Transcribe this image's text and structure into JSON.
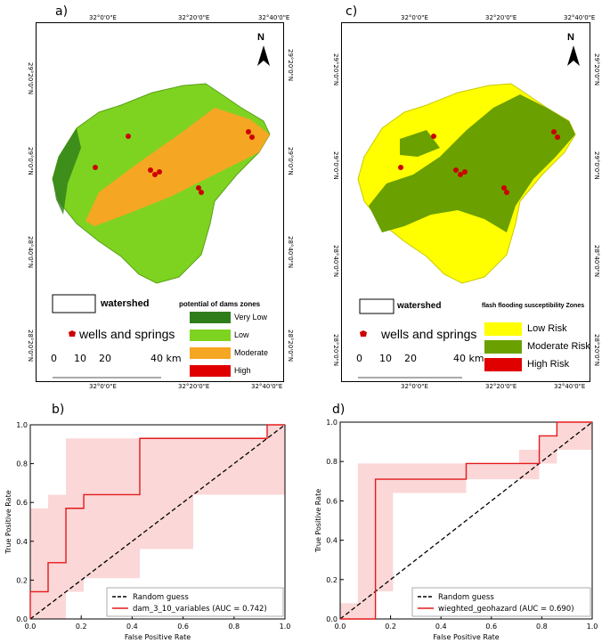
{
  "panels": {
    "a": "a)",
    "b": "b)",
    "c": "c)",
    "d": "d)"
  },
  "map_a": {
    "top_ticks": [
      "32°0'0\"E",
      "32°20'0\"E",
      "32°40'0\"E"
    ],
    "bottom_ticks": [
      "32°0'0\"E",
      "32°20'0\"E",
      "32°40'0\"E"
    ],
    "left_ticks": [
      "29°20'0\"N",
      "29°0'0\"N",
      "28°40'0\"N",
      "28°20'0\"N"
    ],
    "right_ticks": [
      "29°20'0\"N",
      "29°0'0\"N",
      "28°40'0\"N",
      "28°20'0\"N"
    ],
    "north": "N",
    "legend_watershed": "watershed",
    "legend_wells": "wells and springs",
    "legend_title": "potential of dams zones",
    "classes": [
      {
        "label": "Very Low",
        "color": "#2e7d1a"
      },
      {
        "label": "Low",
        "color": "#7ed321"
      },
      {
        "label": "Moderate",
        "color": "#f5a623"
      },
      {
        "label": "High",
        "color": "#e00000"
      }
    ],
    "scale": [
      "0",
      "10",
      "20",
      "40 km"
    ]
  },
  "map_c": {
    "top_ticks": [
      "32°0'0\"E",
      "32°20'0\"E",
      "32°40'0\"E"
    ],
    "bottom_ticks": [
      "32°0'0\"E",
      "32°20'0\"E",
      "32°40'0\"E"
    ],
    "left_ticks": [
      "29°20'0\"N",
      "29°0'0\"N",
      "28°40'0\"N",
      "28°20'0\"N"
    ],
    "right_ticks": [
      "29°20'0\"N",
      "29°0'0\"N",
      "28°40'0\"N",
      "28°20'0\"N"
    ],
    "north": "N",
    "legend_watershed": "watershed",
    "legend_wells": "wells and springs",
    "legend_title": "flash flooding susceptibility  Zones",
    "classes": [
      {
        "label": "Low Risk",
        "color": "#ffff00"
      },
      {
        "label": "Moderate Risk",
        "color": "#6aa000"
      },
      {
        "label": "High Risk",
        "color": "#e00000"
      }
    ],
    "scale": [
      "0",
      "10",
      "20",
      "40 km"
    ]
  },
  "chart_data": [
    {
      "type": "line",
      "panel": "b)",
      "xlabel": "False Positive Rate",
      "ylabel": "True Positive Rate",
      "xlim": [
        0,
        1
      ],
      "ylim": [
        0,
        1
      ],
      "xticks": [
        "0.0",
        "0.2",
        "0.4",
        "0.6",
        "0.8",
        "1.0"
      ],
      "yticks": [
        "0.0",
        "0.2",
        "0.4",
        "0.6",
        "0.8",
        "1.0"
      ],
      "series": [
        {
          "name": "Random guess",
          "style": "dashed",
          "color": "#000000",
          "x": [
            0,
            1
          ],
          "y": [
            0,
            1
          ]
        },
        {
          "name": "dam_3_10_variables (AUC = 0.742)",
          "style": "solid",
          "color": "#e41a1c",
          "x": [
            0,
            0,
            0.07,
            0.07,
            0.14,
            0.14,
            0.21,
            0.21,
            0.43,
            0.43,
            0.93,
            0.93,
            1.0
          ],
          "y": [
            0,
            0.14,
            0.14,
            0.29,
            0.29,
            0.57,
            0.57,
            0.64,
            0.64,
            0.93,
            0.93,
            1.0,
            1.0
          ]
        }
      ],
      "band": {
        "x": [
          0,
          0.07,
          0.14,
          0.21,
          0.43,
          0.64,
          0.93,
          1.0
        ],
        "upper": [
          0.57,
          0.64,
          0.93,
          0.93,
          0.93,
          0.93,
          1.0,
          1.0
        ],
        "lower": [
          0,
          0,
          0.14,
          0.21,
          0.36,
          0.64,
          0.64,
          0.64
        ]
      },
      "legend": [
        "Random guess",
        "dam_3_10_variables (AUC = 0.742)"
      ]
    },
    {
      "type": "line",
      "panel": "d)",
      "xlabel": "False Positive Rate",
      "ylabel": "True Positive Rate",
      "xlim": [
        0,
        1
      ],
      "ylim": [
        0,
        1
      ],
      "xticks": [
        "0.0",
        "0.2",
        "0.4",
        "0.6",
        "0.8",
        "1.0"
      ],
      "yticks": [
        "0.0",
        "0.2",
        "0.4",
        "0.6",
        "0.8",
        "1.0"
      ],
      "series": [
        {
          "name": "Random guess",
          "style": "dashed",
          "color": "#000000",
          "x": [
            0,
            1
          ],
          "y": [
            0,
            1
          ]
        },
        {
          "name": "wieghted_geohazard (AUC = 0.690)",
          "style": "solid",
          "color": "#e41a1c",
          "x": [
            0,
            0.14,
            0.14,
            0.5,
            0.5,
            0.79,
            0.79,
            0.86,
            0.86,
            1.0
          ],
          "y": [
            0,
            0,
            0.71,
            0.71,
            0.79,
            0.79,
            0.93,
            0.93,
            1.0,
            1.0
          ]
        }
      ],
      "band": {
        "x": [
          0,
          0.07,
          0.14,
          0.21,
          0.5,
          0.71,
          0.79,
          0.86,
          1.0
        ],
        "upper": [
          0.08,
          0.79,
          0.79,
          0.79,
          0.79,
          0.86,
          0.93,
          1.0,
          1.0
        ],
        "lower": [
          0,
          0,
          0.14,
          0.64,
          0.71,
          0.71,
          0.79,
          0.86,
          0.86
        ]
      },
      "legend": [
        "Random guess",
        "wieghted_geohazard (AUC = 0.690)"
      ]
    }
  ]
}
